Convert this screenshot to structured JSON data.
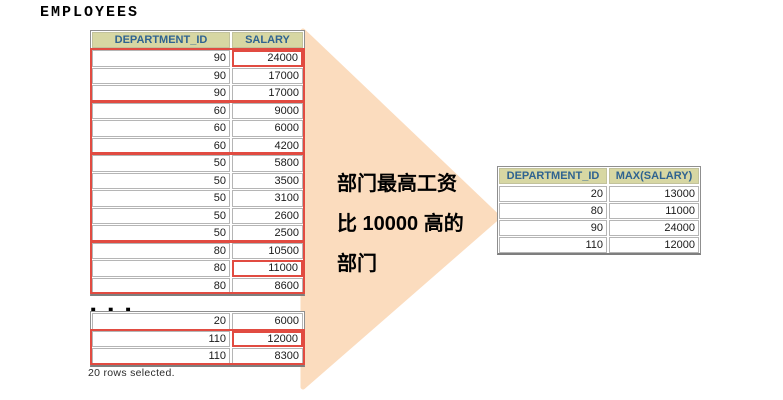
{
  "title": "EMPLOYEES",
  "left_table": {
    "headers": [
      "DEPARTMENT_ID",
      "SALARY"
    ],
    "rows": [
      [
        90,
        24000
      ],
      [
        90,
        17000
      ],
      [
        90,
        17000
      ],
      [
        60,
        9000
      ],
      [
        60,
        6000
      ],
      [
        60,
        4200
      ],
      [
        50,
        5800
      ],
      [
        50,
        3500
      ],
      [
        50,
        3100
      ],
      [
        50,
        2600
      ],
      [
        50,
        2500
      ],
      [
        80,
        10500
      ],
      [
        80,
        11000
      ],
      [
        80,
        8600
      ]
    ],
    "groups": [
      {
        "start": 0,
        "end": 2
      },
      {
        "start": 3,
        "end": 5
      },
      {
        "start": 6,
        "end": 10
      },
      {
        "start": 11,
        "end": 13
      }
    ],
    "highlight_cells": [
      {
        "row": 0,
        "col": 1
      },
      {
        "row": 12,
        "col": 1
      }
    ]
  },
  "tail_table": {
    "rows": [
      [
        20,
        6000
      ],
      [
        110,
        12000
      ],
      [
        110,
        8300
      ]
    ],
    "groups": [
      {
        "start": 1,
        "end": 2
      }
    ],
    "highlight_cells": [
      {
        "row": 1,
        "col": 1
      }
    ]
  },
  "ellipsis": "...",
  "status_text": "20 rows selected.",
  "annotation": {
    "lines": [
      "部门最高工资",
      "比 10000 高的",
      "部门"
    ]
  },
  "result_table": {
    "headers": [
      "DEPARTMENT_ID",
      "MAX(SALARY)"
    ],
    "rows": [
      [
        20,
        13000
      ],
      [
        80,
        11000
      ],
      [
        90,
        24000
      ],
      [
        110,
        12000
      ]
    ]
  },
  "colors": {
    "accent_red": "#e14b41",
    "arrow_fill": "#fbdcbe",
    "header_bg": "#d7d7a3",
    "header_text": "#2f6390"
  }
}
